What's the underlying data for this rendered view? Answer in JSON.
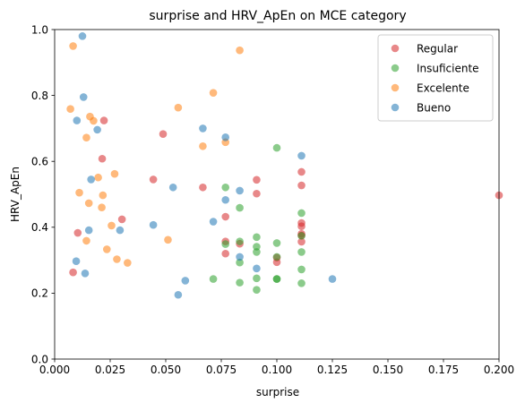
{
  "chart_data": {
    "type": "scatter",
    "title": "surprise and HRV_ApEn on MCE category",
    "xlabel": "surprise",
    "ylabel": "HRV_ApEn",
    "xlim": [
      0,
      0.2
    ],
    "ylim": [
      0,
      1.0
    ],
    "x_ticks": [
      "0.000",
      "0.025",
      "0.050",
      "0.075",
      "0.100",
      "0.125",
      "0.150",
      "0.175",
      "0.200"
    ],
    "y_ticks": [
      "0.0",
      "0.2",
      "0.4",
      "0.6",
      "0.8",
      "1.0"
    ],
    "grid": false,
    "legend_position": "upper-right",
    "series": [
      {
        "name": "Regular",
        "color": "#d62728",
        "points": [
          [
            0.0083,
            0.263
          ],
          [
            0.0104,
            0.383
          ],
          [
            0.0214,
            0.608
          ],
          [
            0.0222,
            0.724
          ],
          [
            0.0303,
            0.424
          ],
          [
            0.0444,
            0.545
          ],
          [
            0.0488,
            0.683
          ],
          [
            0.0667,
            0.521
          ],
          [
            0.0769,
            0.432
          ],
          [
            0.0769,
            0.357
          ],
          [
            0.0769,
            0.32
          ],
          [
            0.0833,
            0.35
          ],
          [
            0.0909,
            0.544
          ],
          [
            0.0909,
            0.502
          ],
          [
            0.1,
            0.308
          ],
          [
            0.1,
            0.294
          ],
          [
            0.1111,
            0.568
          ],
          [
            0.1111,
            0.527
          ],
          [
            0.1111,
            0.413
          ],
          [
            0.1111,
            0.403
          ],
          [
            0.1111,
            0.38
          ],
          [
            0.1111,
            0.375
          ],
          [
            0.1111,
            0.356
          ],
          [
            0.2,
            0.497
          ]
        ]
      },
      {
        "name": "Insuficiente",
        "color": "#2ca02c",
        "points": [
          [
            0.0714,
            0.243
          ],
          [
            0.0769,
            0.521
          ],
          [
            0.0769,
            0.349
          ],
          [
            0.0833,
            0.459
          ],
          [
            0.0833,
            0.357
          ],
          [
            0.0833,
            0.293
          ],
          [
            0.0833,
            0.232
          ],
          [
            0.0909,
            0.37
          ],
          [
            0.0909,
            0.341
          ],
          [
            0.0909,
            0.325
          ],
          [
            0.0909,
            0.245
          ],
          [
            0.0909,
            0.21
          ],
          [
            0.1,
            0.641
          ],
          [
            0.1,
            0.352
          ],
          [
            0.1,
            0.31
          ],
          [
            0.1,
            0.243
          ],
          [
            0.1,
            0.243
          ],
          [
            0.1111,
            0.443
          ],
          [
            0.1111,
            0.374
          ],
          [
            0.1111,
            0.325
          ],
          [
            0.1111,
            0.272
          ],
          [
            0.1111,
            0.23
          ]
        ]
      },
      {
        "name": "Excelente",
        "color": "#ff7f0e",
        "points": [
          [
            0.0071,
            0.759
          ],
          [
            0.0083,
            0.95
          ],
          [
            0.0111,
            0.505
          ],
          [
            0.0143,
            0.359
          ],
          [
            0.0143,
            0.672
          ],
          [
            0.0154,
            0.473
          ],
          [
            0.0159,
            0.736
          ],
          [
            0.0175,
            0.723
          ],
          [
            0.0196,
            0.551
          ],
          [
            0.0212,
            0.46
          ],
          [
            0.0217,
            0.497
          ],
          [
            0.0235,
            0.333
          ],
          [
            0.0256,
            0.405
          ],
          [
            0.027,
            0.562
          ],
          [
            0.028,
            0.303
          ],
          [
            0.0328,
            0.292
          ],
          [
            0.051,
            0.362
          ],
          [
            0.0556,
            0.763
          ],
          [
            0.0667,
            0.646
          ],
          [
            0.0714,
            0.808
          ],
          [
            0.0769,
            0.658
          ],
          [
            0.0833,
            0.937
          ]
        ]
      },
      {
        "name": "Bueno",
        "color": "#1f77b4",
        "points": [
          [
            0.0097,
            0.297
          ],
          [
            0.01,
            0.724
          ],
          [
            0.0125,
            0.98
          ],
          [
            0.013,
            0.795
          ],
          [
            0.0137,
            0.26
          ],
          [
            0.0154,
            0.391
          ],
          [
            0.0164,
            0.545
          ],
          [
            0.0192,
            0.696
          ],
          [
            0.0294,
            0.391
          ],
          [
            0.0444,
            0.407
          ],
          [
            0.0533,
            0.521
          ],
          [
            0.0556,
            0.195
          ],
          [
            0.0588,
            0.238
          ],
          [
            0.0667,
            0.7
          ],
          [
            0.0714,
            0.417
          ],
          [
            0.0769,
            0.673
          ],
          [
            0.0769,
            0.483
          ],
          [
            0.0833,
            0.511
          ],
          [
            0.0833,
            0.31
          ],
          [
            0.0909,
            0.275
          ],
          [
            0.1111,
            0.617
          ],
          [
            0.125,
            0.243
          ]
        ]
      }
    ]
  }
}
